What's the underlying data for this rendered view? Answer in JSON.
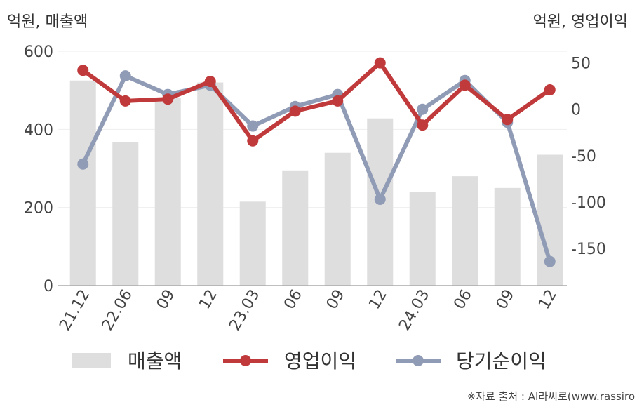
{
  "chart_data": {
    "type": "bar+line",
    "left_unit": "억원, 매출액",
    "right_unit": "억원, 영업이익",
    "categories": [
      "21.12",
      "22.06",
      "09",
      "12",
      "23.03",
      "06",
      "09",
      "12",
      "24.03",
      "06",
      "09",
      "12"
    ],
    "bar_series": {
      "name": "매출액",
      "axis": "left",
      "color": "#dedede",
      "values": [
        525,
        367,
        480,
        520,
        215,
        295,
        340,
        428,
        240,
        280,
        250,
        335
      ]
    },
    "line_series": [
      {
        "name": "영업이익",
        "axis": "right",
        "color": "#c0393b",
        "values": [
          42,
          9,
          11,
          30,
          -34,
          -2,
          9,
          50,
          -17,
          26,
          -11,
          21
        ]
      },
      {
        "name": "당기순이익",
        "axis": "right",
        "color": "#909bb5",
        "values": [
          -59,
          36,
          16,
          26,
          -18,
          3,
          16,
          -97,
          0,
          31,
          -14,
          -164
        ]
      }
    ],
    "left_axis": {
      "ylim": [
        0,
        600
      ],
      "ticks": [
        0,
        200,
        400,
        600
      ]
    },
    "right_axis": {
      "ylim": [
        -190,
        55
      ],
      "ticks": [
        50,
        0,
        -50,
        -100,
        -150
      ]
    },
    "grid": true,
    "legend_position": "bottom"
  },
  "source_note": "※자료 출처 : AI라씨로(www.rassiro"
}
